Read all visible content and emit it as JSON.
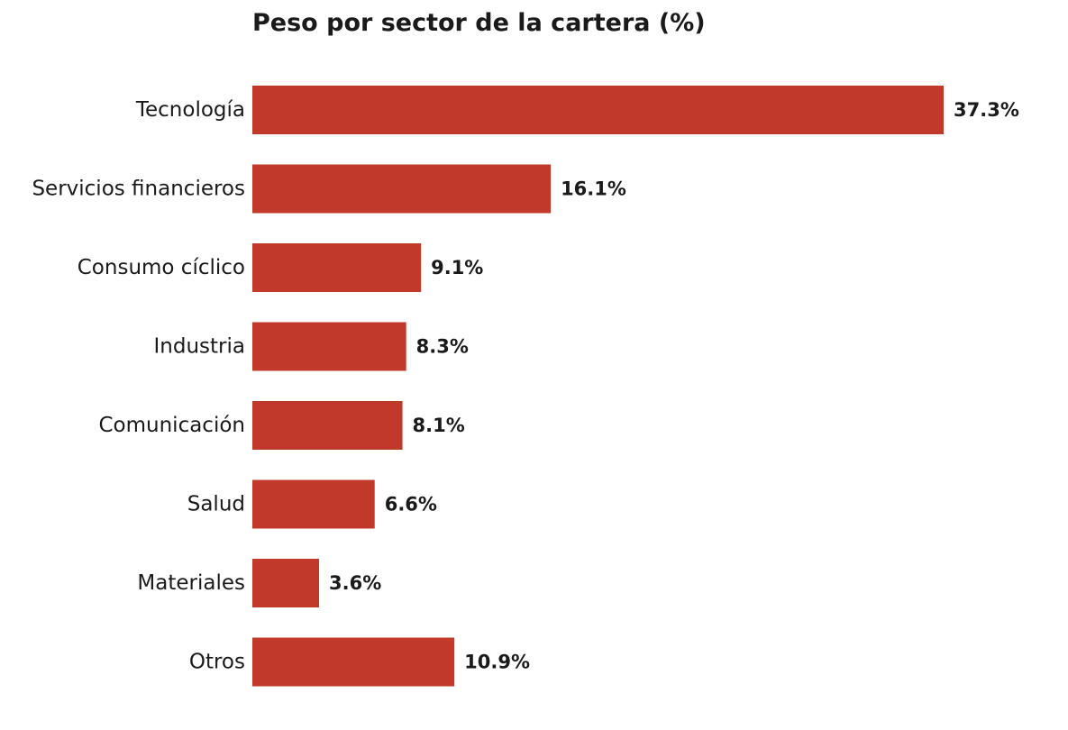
{
  "chart_data": {
    "type": "bar",
    "orientation": "horizontal",
    "title": "Peso por sector de la cartera (%)",
    "xlabel": "",
    "ylabel": "",
    "categories": [
      "Tecnología",
      "Servicios financieros",
      "Consumo cíclico",
      "Industria",
      "Comunicación",
      "Salud",
      "Materiales",
      "Otros"
    ],
    "values": [
      37.3,
      16.1,
      9.1,
      8.3,
      8.1,
      6.6,
      3.6,
      10.9
    ],
    "value_labels": [
      "37.3%",
      "16.1%",
      "9.1%",
      "8.3%",
      "8.1%",
      "6.6%",
      "3.6%",
      "10.9%"
    ],
    "xlim": [
      0,
      37.3
    ],
    "grid": false,
    "bar_color": "#c0392b"
  }
}
